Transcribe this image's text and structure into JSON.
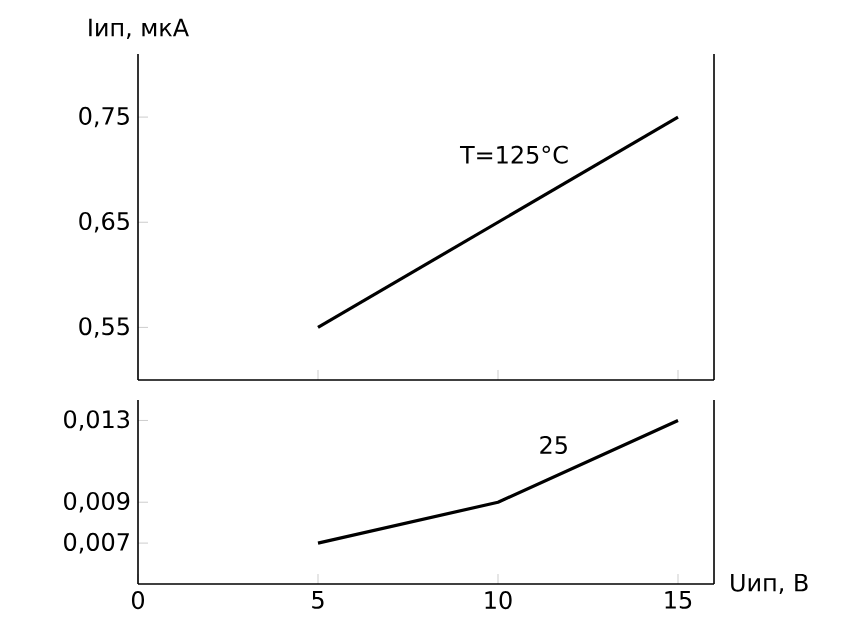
{
  "chart_data": [
    {
      "type": "line",
      "ylabel": "Iип, мкА",
      "xlim": [
        0,
        16
      ],
      "xticks": [
        0,
        5,
        10,
        15
      ],
      "ylim": [
        0.5,
        0.81
      ],
      "yticks": [
        {
          "value": 0.55,
          "label": "0,55"
        },
        {
          "value": 0.65,
          "label": "0,65"
        },
        {
          "value": 0.75,
          "label": "0,75"
        }
      ],
      "tick_labels": "y",
      "marker": "none",
      "line_style": "solid",
      "series": [
        {
          "name": "T=125°C",
          "color": "#000000",
          "x": [
            5,
            15
          ],
          "values": [
            0.55,
            0.75
          ]
        }
      ]
    },
    {
      "type": "line",
      "xlabel": "Uип, В",
      "xlim": [
        0,
        16
      ],
      "xticks": [
        0,
        5,
        10,
        15
      ],
      "ylim": [
        0.005,
        0.014
      ],
      "yticks": [
        {
          "value": 0.007,
          "label": "0,007"
        },
        {
          "value": 0.009,
          "label": "0,009"
        },
        {
          "value": 0.013,
          "label": "0,013"
        }
      ],
      "marker": "none",
      "line_style": "solid",
      "series": [
        {
          "name": "25",
          "color": "#000000",
          "x": [
            5,
            10,
            15
          ],
          "values": [
            0.007,
            0.009,
            0.013
          ]
        }
      ]
    }
  ]
}
